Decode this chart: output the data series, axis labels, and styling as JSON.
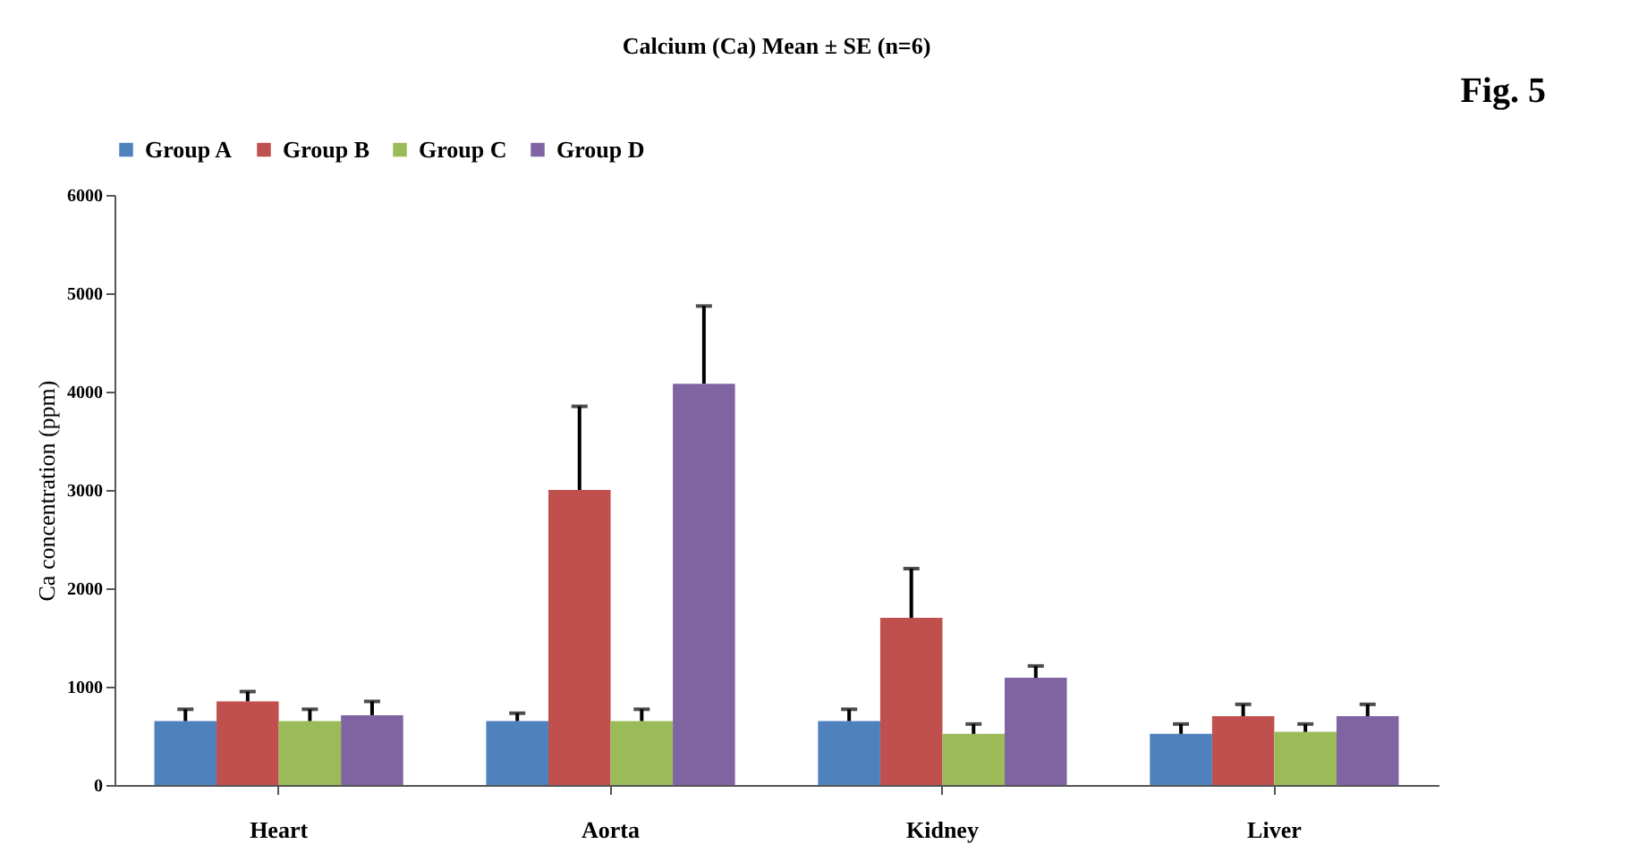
{
  "chart_data": {
    "type": "bar",
    "title": "Calcium (Ca) Mean ± SE    (n=6)",
    "annotations": [
      "Fig. 5"
    ],
    "ylabel": "Ca concentration (ppm)",
    "categories": [
      "Heart",
      "Aorta",
      "Kidney",
      "Liver"
    ],
    "series": [
      {
        "name": "Group A",
        "color": "#4f81bd",
        "values": [
          650,
          650,
          650,
          520
        ],
        "errors": [
          [
            650,
            770
          ],
          [
            650,
            730
          ],
          [
            650,
            770
          ],
          [
            520,
            620
          ]
        ]
      },
      {
        "name": "Group B",
        "color": "#c0504d",
        "values": [
          850,
          3000,
          1700,
          700
        ],
        "errors": [
          [
            850,
            950
          ],
          [
            3000,
            3850
          ],
          [
            1700,
            2200
          ],
          [
            700,
            820
          ]
        ]
      },
      {
        "name": "Group C",
        "color": "#9bbb59",
        "values": [
          650,
          650,
          520,
          540
        ],
        "errors": [
          [
            650,
            770
          ],
          [
            650,
            770
          ],
          [
            520,
            620
          ],
          [
            540,
            620
          ]
        ]
      },
      {
        "name": "Group D",
        "color": "#8064a2",
        "values": [
          710,
          4080,
          1090,
          700
        ],
        "errors": [
          [
            710,
            850
          ],
          [
            4080,
            4870
          ],
          [
            1090,
            1210
          ],
          [
            700,
            820
          ]
        ]
      }
    ],
    "ylim": [
      0,
      6000
    ],
    "yticks": [
      0,
      1000,
      2000,
      3000,
      4000,
      5000,
      6000
    ],
    "grid": false,
    "legend": "top"
  }
}
